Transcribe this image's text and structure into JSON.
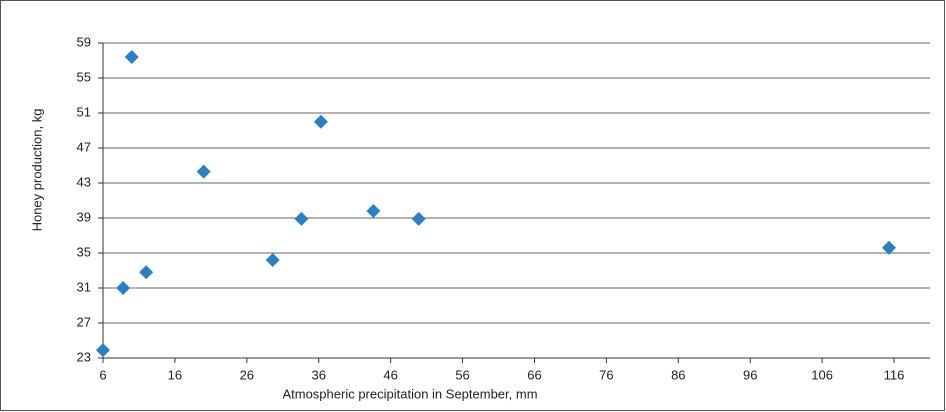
{
  "chart_data": {
    "type": "scatter",
    "x_label": "Atmospheric precipitation in September, mm",
    "y_label": "Honey production, kg",
    "x": [
      6,
      8.8,
      10,
      12,
      20,
      29.6,
      33.6,
      36.3,
      43.6,
      49.9,
      115.3
    ],
    "values": [
      23.9,
      31,
      57.4,
      32.8,
      44.3,
      34.2,
      38.9,
      50,
      39.8,
      38.9,
      35.6
    ],
    "color": "#2e7fc1",
    "xlim": [
      6,
      121
    ],
    "xticks": [
      6,
      16,
      26,
      36,
      46,
      56,
      66,
      76,
      86,
      96,
      106,
      116
    ],
    "ylim": [
      23,
      59
    ],
    "yticks": [
      23,
      27,
      31,
      35,
      39,
      43,
      47,
      51,
      55,
      59
    ],
    "grid": true
  }
}
